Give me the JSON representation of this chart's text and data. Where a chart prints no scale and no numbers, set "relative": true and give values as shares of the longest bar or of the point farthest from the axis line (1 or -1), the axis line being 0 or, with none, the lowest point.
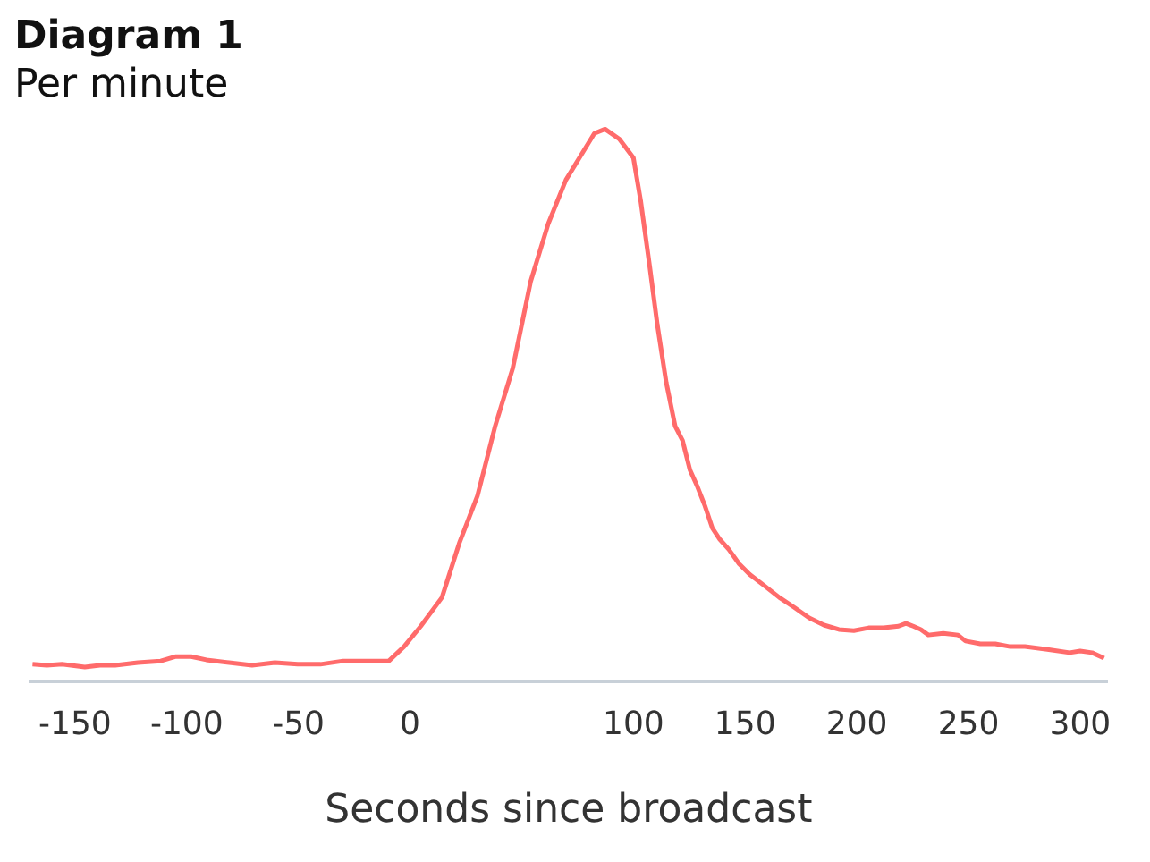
{
  "chart_data": {
    "type": "line",
    "title": "Diagram 1",
    "subtitle": "Per minute",
    "xlabel": "Seconds since broadcast",
    "relative": true,
    "legend": false,
    "grid": false,
    "marker": "none",
    "line_style": "solid",
    "xlim": [
      -170,
      312
    ],
    "xticks": [
      -150,
      -100,
      -50,
      0,
      100,
      150,
      200,
      250,
      300
    ],
    "x": [
      -169,
      -162.6,
      -155.8,
      -145.6,
      -138.8,
      -132,
      -121.8,
      -111.6,
      -104.8,
      -98,
      -91.2,
      -81,
      -70.7,
      -60.5,
      -50.3,
      -40.1,
      -29.9,
      -19.7,
      -9.5,
      -2.7,
      4.8,
      14.3,
      22.2,
      30.2,
      38.1,
      46,
      54,
      61.9,
      69.8,
      77.8,
      82.5,
      87.3,
      93.7,
      100,
      103.3,
      107.3,
      110.7,
      114.7,
      118.7,
      122,
      125.3,
      128.7,
      132,
      135.3,
      138.7,
      142.7,
      147.3,
      152,
      158.7,
      165.3,
      172,
      178.7,
      185.3,
      192,
      198.7,
      205.3,
      212,
      218.7,
      222,
      225.3,
      228.7,
      232,
      238.7,
      245.3,
      248.7,
      255.3,
      262,
      268.7,
      275.3,
      285.3,
      295.3,
      300,
      305.3,
      310.7
    ],
    "series": [
      {
        "color": "#ff6b6b",
        "values": [
          0.031,
          0.029,
          0.031,
          0.026,
          0.029,
          0.029,
          0.034,
          0.037,
          0.045,
          0.045,
          0.039,
          0.034,
          0.029,
          0.034,
          0.031,
          0.031,
          0.037,
          0.037,
          0.037,
          0.063,
          0.1,
          0.152,
          0.252,
          0.336,
          0.462,
          0.567,
          0.724,
          0.829,
          0.908,
          0.961,
          0.992,
          1,
          0.982,
          0.948,
          0.869,
          0.751,
          0.646,
          0.541,
          0.462,
          0.436,
          0.383,
          0.352,
          0.318,
          0.278,
          0.257,
          0.239,
          0.213,
          0.194,
          0.173,
          0.152,
          0.134,
          0.115,
          0.102,
          0.094,
          0.092,
          0.097,
          0.097,
          0.1,
          0.105,
          0.1,
          0.094,
          0.084,
          0.087,
          0.084,
          0.073,
          0.068,
          0.068,
          0.063,
          0.063,
          0.058,
          0.052,
          0.055,
          0.052,
          0.042
        ]
      }
    ]
  }
}
